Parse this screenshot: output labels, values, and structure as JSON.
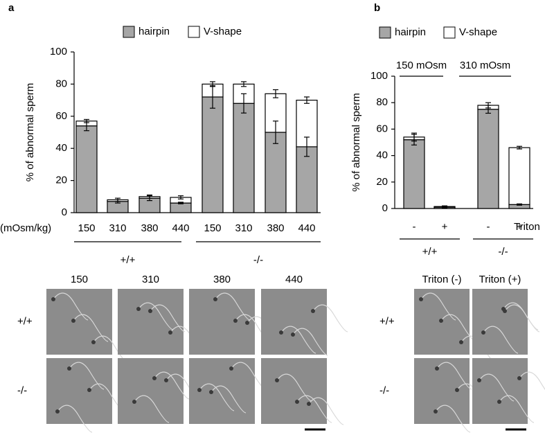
{
  "panel_labels": [
    "a",
    "b"
  ],
  "chart_data": [
    {
      "type": "bar",
      "stacked": true,
      "y_label": "% of abnormal sperm",
      "x_label": "(mOsm/kg)",
      "categories": [
        "150",
        "310",
        "380",
        "440",
        "150",
        "310",
        "380",
        "440"
      ],
      "groups": [
        "+/+",
        "-/-"
      ],
      "series": [
        {
          "name": "hairpin",
          "color": "#a6a6a6",
          "values": [
            54,
            7,
            9,
            6,
            72,
            68,
            50,
            41
          ],
          "errors": [
            3,
            1,
            1.5,
            0.5,
            7,
            6,
            7,
            6
          ]
        },
        {
          "name": "V-shape",
          "color": "#ffffff",
          "values": [
            3,
            1,
            1,
            3.5,
            8,
            12,
            24,
            29
          ],
          "errors": [
            1,
            1,
            1,
            1,
            1.5,
            1.5,
            2.5,
            2
          ]
        }
      ],
      "ylim": [
        0,
        100
      ],
      "yticks": [
        0,
        20,
        40,
        60,
        80,
        100
      ]
    },
    {
      "type": "bar",
      "stacked": true,
      "y_label": "% of abnormal sperm",
      "x_label": "Triton",
      "categories": [
        "-",
        "+",
        "-",
        "+"
      ],
      "groups": [
        "+/+",
        "-/-"
      ],
      "annotations": [
        "150 mOsm",
        "310 mOsm"
      ],
      "series": [
        {
          "name": "hairpin",
          "color": "#a6a6a6",
          "values": [
            52,
            1,
            75,
            3
          ],
          "errors": [
            4,
            0.5,
            3,
            0.5
          ]
        },
        {
          "name": "V-shape",
          "color": "#ffffff",
          "values": [
            2,
            0.5,
            3,
            43
          ],
          "errors": [
            3,
            0.5,
            2,
            1
          ]
        }
      ],
      "ylim": [
        0,
        100
      ],
      "yticks": [
        0,
        20,
        40,
        60,
        80,
        100
      ]
    }
  ],
  "image_panels": [
    {
      "columns": [
        "150",
        "310",
        "380",
        "440"
      ],
      "rows": [
        "+/+",
        "-/-"
      ]
    },
    {
      "columns": [
        "Triton (-)",
        "Triton (+)"
      ],
      "rows": [
        "+/+",
        "-/-"
      ]
    }
  ]
}
